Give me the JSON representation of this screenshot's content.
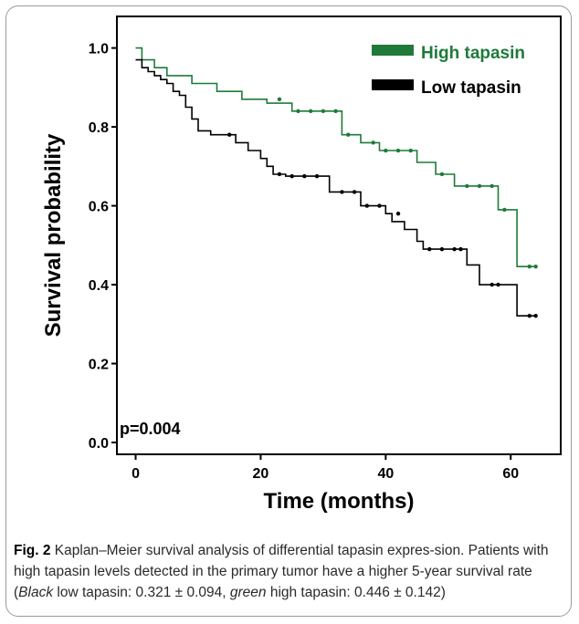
{
  "chart_data": {
    "type": "line",
    "xlabel": "Time (months)",
    "ylabel": "Survival probability",
    "xlim": [
      -3,
      68
    ],
    "ylim": [
      -0.03,
      1.08
    ],
    "xticks": [
      0,
      20,
      40,
      60
    ],
    "yticks": [
      0.0,
      0.2,
      0.4,
      0.6,
      0.8,
      1.0
    ],
    "xtick_labels": [
      "0",
      "20",
      "40",
      "60"
    ],
    "ytick_labels": [
      "0.0",
      "0.2",
      "0.4",
      "0.6",
      "0.8",
      "1.0"
    ],
    "legend_position": "top-right",
    "annotation": "p=0.004",
    "series": [
      {
        "name": "High tapasin",
        "color": "#1f7a3a",
        "x": [
          0,
          1,
          1,
          3,
          3,
          5,
          5,
          9,
          9,
          13,
          13,
          17,
          17,
          21,
          21,
          25,
          25,
          33,
          33,
          36,
          36,
          39,
          39,
          45,
          45,
          48,
          48,
          51,
          51,
          58,
          58,
          61,
          61,
          64
        ],
        "y": [
          1.0,
          1.0,
          0.97,
          0.97,
          0.95,
          0.95,
          0.93,
          0.93,
          0.91,
          0.91,
          0.89,
          0.89,
          0.87,
          0.87,
          0.86,
          0.86,
          0.84,
          0.84,
          0.78,
          0.78,
          0.76,
          0.76,
          0.74,
          0.74,
          0.71,
          0.71,
          0.68,
          0.68,
          0.65,
          0.65,
          0.59,
          0.59,
          0.446,
          0.446
        ],
        "censor_x": [
          23,
          26,
          28,
          30,
          32,
          34,
          38,
          40,
          42,
          44,
          49,
          53,
          55,
          57,
          59,
          63,
          64
        ],
        "censor_y": [
          0.87,
          0.84,
          0.84,
          0.84,
          0.84,
          0.78,
          0.76,
          0.74,
          0.74,
          0.74,
          0.68,
          0.65,
          0.65,
          0.65,
          0.59,
          0.446,
          0.446
        ]
      },
      {
        "name": "Low tapasin",
        "color": "#000000",
        "x": [
          0,
          1,
          1,
          2,
          2,
          3,
          3,
          4,
          4,
          5,
          5,
          6,
          6,
          7,
          7,
          8,
          8,
          9,
          9,
          10,
          10,
          12,
          12,
          16,
          16,
          18,
          18,
          20,
          20,
          21,
          21,
          22,
          22,
          24,
          24,
          31,
          31,
          36,
          36,
          40,
          40,
          41,
          41,
          43,
          43,
          45,
          45,
          46,
          46,
          53,
          53,
          55,
          55,
          61,
          61,
          64
        ],
        "y": [
          0.97,
          0.97,
          0.95,
          0.95,
          0.94,
          0.94,
          0.93,
          0.93,
          0.92,
          0.92,
          0.91,
          0.91,
          0.89,
          0.89,
          0.88,
          0.88,
          0.85,
          0.85,
          0.82,
          0.82,
          0.79,
          0.79,
          0.78,
          0.78,
          0.76,
          0.76,
          0.74,
          0.74,
          0.72,
          0.72,
          0.7,
          0.7,
          0.68,
          0.68,
          0.675,
          0.675,
          0.635,
          0.635,
          0.6,
          0.6,
          0.58,
          0.58,
          0.56,
          0.56,
          0.54,
          0.54,
          0.51,
          0.51,
          0.49,
          0.49,
          0.45,
          0.45,
          0.4,
          0.4,
          0.321,
          0.321
        ],
        "censor_x": [
          15,
          23,
          25,
          27,
          29,
          33,
          35,
          37,
          39,
          42,
          47,
          49,
          51,
          52,
          57,
          58,
          63,
          64
        ],
        "censor_y": [
          0.78,
          0.68,
          0.675,
          0.675,
          0.675,
          0.635,
          0.635,
          0.6,
          0.6,
          0.58,
          0.49,
          0.49,
          0.49,
          0.49,
          0.4,
          0.4,
          0.321,
          0.321
        ]
      }
    ]
  },
  "caption": {
    "label": "Fig. 2",
    "text_1": "  Kaplan–Meier survival analysis of differential tapasin expres-sion. Patients with high tapasin levels detected in the primary tumor have a higher 5-year survival rate (",
    "italic_1": "Black",
    "text_2": " low tapasin: 0.321 ± 0.094, ",
    "italic_2": "green",
    "text_3": " high tapasin: 0.446 ± 0.142)"
  }
}
